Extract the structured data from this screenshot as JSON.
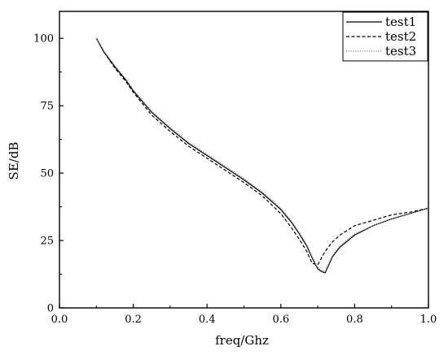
{
  "chart_data": {
    "type": "line",
    "xlabel": "freq/Ghz",
    "ylabel": "SE/dB",
    "xlim": [
      0.0,
      1.0
    ],
    "ylim": [
      0,
      110
    ],
    "xticks": [
      0.0,
      0.2,
      0.4,
      0.6,
      0.8,
      1.0
    ],
    "xtick_labels": [
      "0.0",
      "0.2",
      "0.4",
      "0.6",
      "0.8",
      "1.0"
    ],
    "yticks": [
      0,
      25,
      50,
      75,
      100
    ],
    "ytick_labels": [
      "0",
      "25",
      "50",
      "75",
      "100"
    ],
    "grid": false,
    "legend_position": "top-right",
    "series": [
      {
        "name": "test1",
        "style": "solid",
        "color": "#000000",
        "x": [
          0.1,
          0.12,
          0.15,
          0.18,
          0.2,
          0.25,
          0.3,
          0.35,
          0.4,
          0.45,
          0.5,
          0.55,
          0.6,
          0.63,
          0.65,
          0.67,
          0.69,
          0.7,
          0.71,
          0.72,
          0.74,
          0.76,
          0.8,
          0.85,
          0.9,
          0.95,
          1.0
        ],
        "y": [
          100,
          95,
          89.5,
          84.5,
          80.5,
          72.5,
          66.5,
          61,
          56.5,
          52,
          47.5,
          42.5,
          36.5,
          31.5,
          27.5,
          23,
          17,
          14.5,
          13.5,
          13,
          19,
          22.5,
          27,
          30.5,
          33,
          35,
          37
        ]
      },
      {
        "name": "test2",
        "style": "dashed",
        "color": "#000000",
        "x": [
          0.1,
          0.12,
          0.15,
          0.18,
          0.2,
          0.25,
          0.3,
          0.35,
          0.4,
          0.45,
          0.5,
          0.55,
          0.6,
          0.63,
          0.65,
          0.67,
          0.685,
          0.7,
          0.72,
          0.74,
          0.76,
          0.8,
          0.85,
          0.9,
          0.95,
          1.0
        ],
        "y": [
          100,
          95,
          89,
          84,
          80,
          71.5,
          65.5,
          60,
          55.5,
          51,
          46.5,
          41.5,
          35,
          29.5,
          25.5,
          21,
          16.5,
          16,
          21,
          24.5,
          27,
          30.5,
          32.5,
          34.5,
          35.5,
          37
        ]
      },
      {
        "name": "test3",
        "style": "dotted",
        "color": "#8a8a8a",
        "x": [
          0.1,
          0.12,
          0.15,
          0.18,
          0.2,
          0.25,
          0.3,
          0.35,
          0.4,
          0.45,
          0.5,
          0.55,
          0.6,
          0.63,
          0.65,
          0.67,
          0.69,
          0.7,
          0.71,
          0.72,
          0.74,
          0.76,
          0.8,
          0.85,
          0.9,
          0.95,
          1.0
        ],
        "y": [
          100,
          95.5,
          90,
          85,
          81,
          73,
          67,
          61.5,
          57,
          52.5,
          48,
          43,
          37,
          32,
          28,
          23.5,
          17.5,
          15,
          14,
          13.5,
          19.5,
          23,
          27.5,
          30.5,
          33,
          35,
          37
        ]
      }
    ]
  }
}
